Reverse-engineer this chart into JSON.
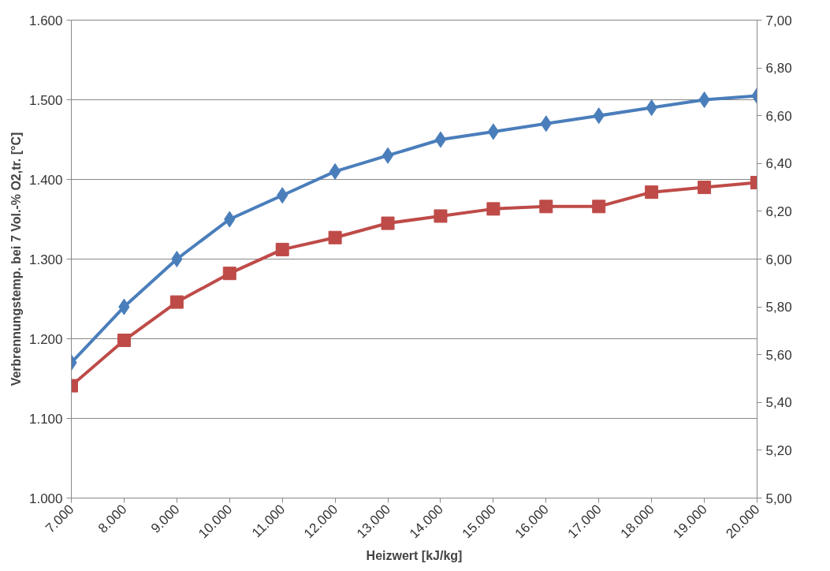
{
  "chart_data": {
    "type": "line",
    "xlabel": "Heizwert [kJ/kg]",
    "ylabel": "Verbrennungstemp. bei 7 Vol.-% O2,tr. [°C]",
    "x": [
      7000,
      8000,
      9000,
      10000,
      11000,
      12000,
      13000,
      14000,
      15000,
      16000,
      17000,
      18000,
      19000,
      20000
    ],
    "xlim": [
      7000,
      20000
    ],
    "xticks": [
      {
        "value": 7000,
        "label": "7.000"
      },
      {
        "value": 8000,
        "label": "8.000"
      },
      {
        "value": 9000,
        "label": "9.000"
      },
      {
        "value": 10000,
        "label": "10.000"
      },
      {
        "value": 11000,
        "label": "11.000"
      },
      {
        "value": 12000,
        "label": "12.000"
      },
      {
        "value": 13000,
        "label": "13.000"
      },
      {
        "value": 14000,
        "label": "14.000"
      },
      {
        "value": 15000,
        "label": "15.000"
      },
      {
        "value": 16000,
        "label": "16.000"
      },
      {
        "value": 17000,
        "label": "17.000"
      },
      {
        "value": 18000,
        "label": "18.000"
      },
      {
        "value": 19000,
        "label": "19.000"
      },
      {
        "value": 20000,
        "label": "20.000"
      }
    ],
    "ylim": [
      1000,
      1600
    ],
    "yticks": [
      {
        "value": 1000,
        "label": "1.000"
      },
      {
        "value": 1100,
        "label": "1.100"
      },
      {
        "value": 1200,
        "label": "1.200"
      },
      {
        "value": 1300,
        "label": "1.300"
      },
      {
        "value": 1400,
        "label": "1.400"
      },
      {
        "value": 1500,
        "label": "1.500"
      },
      {
        "value": 1600,
        "label": "1.600"
      }
    ],
    "y2lim": [
      5.0,
      7.0
    ],
    "y2ticks": [
      {
        "value": 5.0,
        "label": "5,00"
      },
      {
        "value": 5.2,
        "label": "5,20"
      },
      {
        "value": 5.4,
        "label": "5,40"
      },
      {
        "value": 5.6,
        "label": "5,60"
      },
      {
        "value": 5.8,
        "label": "5,80"
      },
      {
        "value": 6.0,
        "label": "6,00"
      },
      {
        "value": 6.2,
        "label": "6,20"
      },
      {
        "value": 6.4,
        "label": "6,40"
      },
      {
        "value": 6.6,
        "label": "6,60"
      },
      {
        "value": 6.8,
        "label": "6,80"
      },
      {
        "value": 7.0,
        "label": "7,00"
      }
    ],
    "grid": "y",
    "series": [
      {
        "color": "#4a7ebb",
        "marker": "diamond",
        "values": [
          1170,
          1240,
          1300,
          1350,
          1380,
          1410,
          1430,
          1450,
          1460,
          1470,
          1480,
          1490,
          1500,
          1505
        ]
      },
      {
        "color": "#be4b48",
        "marker": "square",
        "axis": "y2",
        "values": [
          5.47,
          5.66,
          5.82,
          5.94,
          6.04,
          6.09,
          6.15,
          6.18,
          6.21,
          6.22,
          6.22,
          6.28,
          6.3,
          6.32
        ]
      }
    ]
  }
}
